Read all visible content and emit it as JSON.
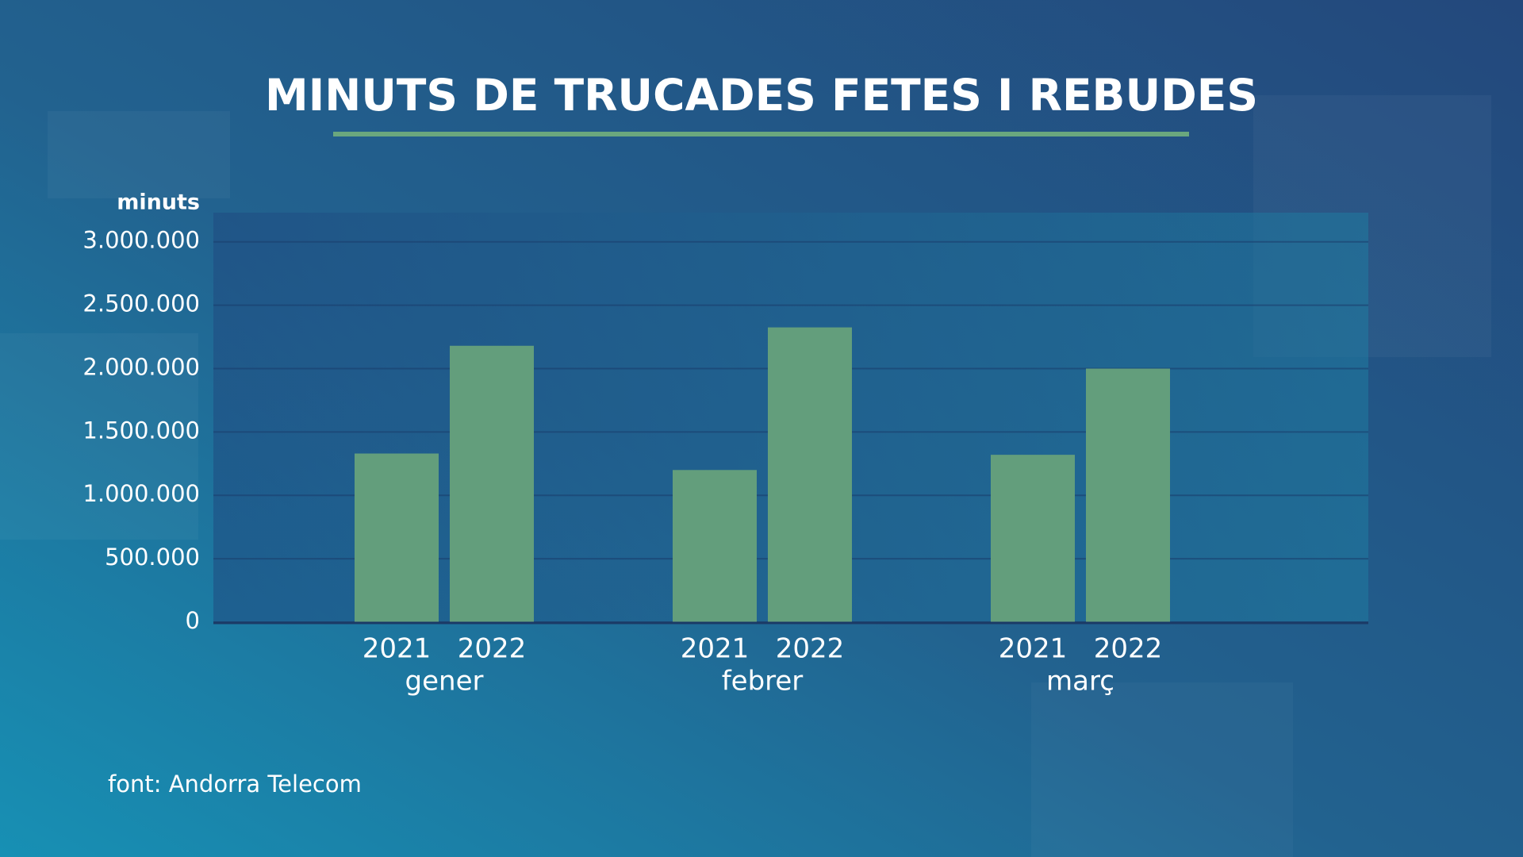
{
  "chart_data": {
    "type": "grouped_bar",
    "title": "MINUTS DE TRUCADES FETES I REBUDES",
    "y_label": "minuts",
    "source": "font: Andorra Telecom",
    "categories": [
      "gener",
      "febrer",
      "març"
    ],
    "series": [
      {
        "name": "2021",
        "color": "#639e7c",
        "values": [
          1330000,
          1200000,
          1320000
        ]
      },
      {
        "name": "2022",
        "color": "#639e7c",
        "values": [
          2180000,
          2325000,
          2000000
        ]
      }
    ],
    "ylim": [
      0,
      3230000
    ],
    "yticks": [
      0,
      {
        "value": 500000,
        "label": "500.000"
      },
      {
        "value": 1000000,
        "label": "1.000.000"
      },
      {
        "value": 1500000,
        "label": "1.500.000"
      },
      {
        "value": 2000000,
        "label": "2.000.000"
      },
      {
        "value": 2500000,
        "label": "2.500.000"
      },
      {
        "value": 3000000,
        "label": "3.000.000"
      }
    ],
    "grid": true
  }
}
